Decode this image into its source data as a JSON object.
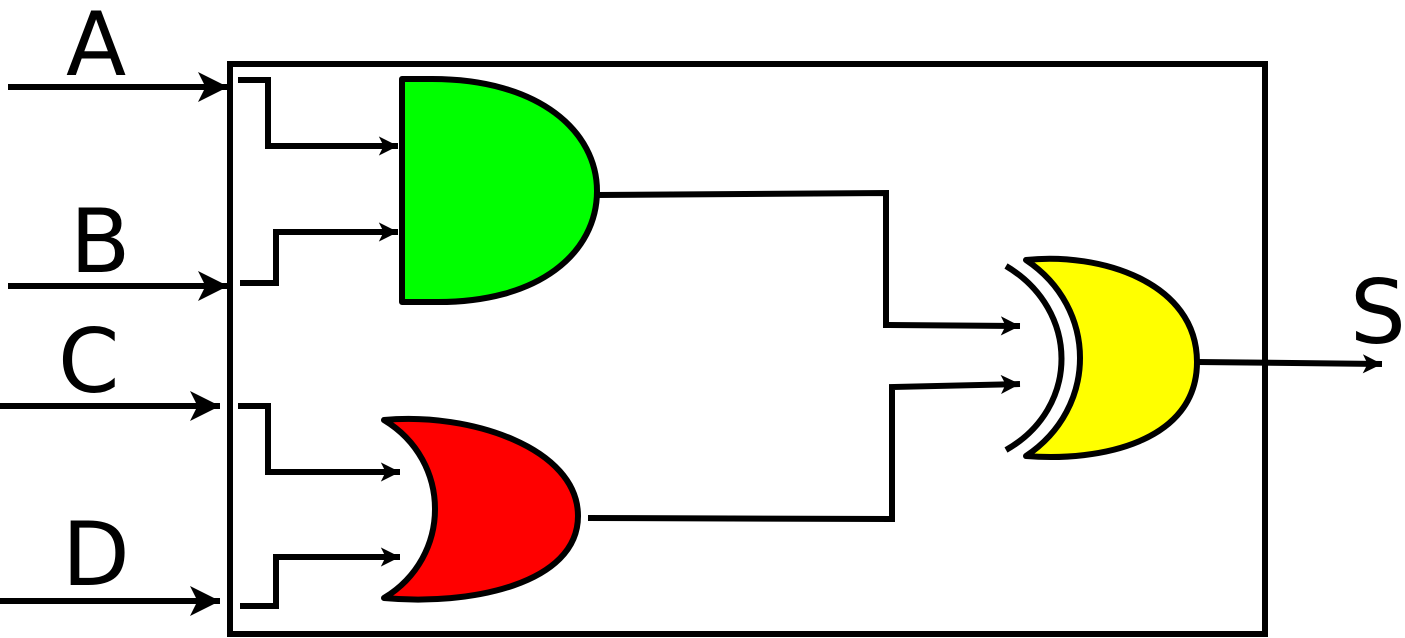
{
  "diagram": {
    "inputs": [
      {
        "id": "A",
        "label": "A"
      },
      {
        "id": "B",
        "label": "B"
      },
      {
        "id": "C",
        "label": "C"
      },
      {
        "id": "D",
        "label": "D"
      }
    ],
    "output": {
      "id": "S",
      "label": "S"
    },
    "gates": [
      {
        "id": "and-gate",
        "type": "AND",
        "inputs": [
          "A",
          "B"
        ],
        "color": "#00ff00"
      },
      {
        "id": "or-gate",
        "type": "OR",
        "inputs": [
          "C",
          "D"
        ],
        "color": "#ff0000"
      },
      {
        "id": "xnor-gate",
        "type": "XNOR",
        "inputs": [
          "and-gate",
          "or-gate"
        ],
        "output": "S",
        "color": "#ffff00"
      }
    ],
    "colors": {
      "line": "#000000",
      "background": "#ffffff"
    }
  }
}
